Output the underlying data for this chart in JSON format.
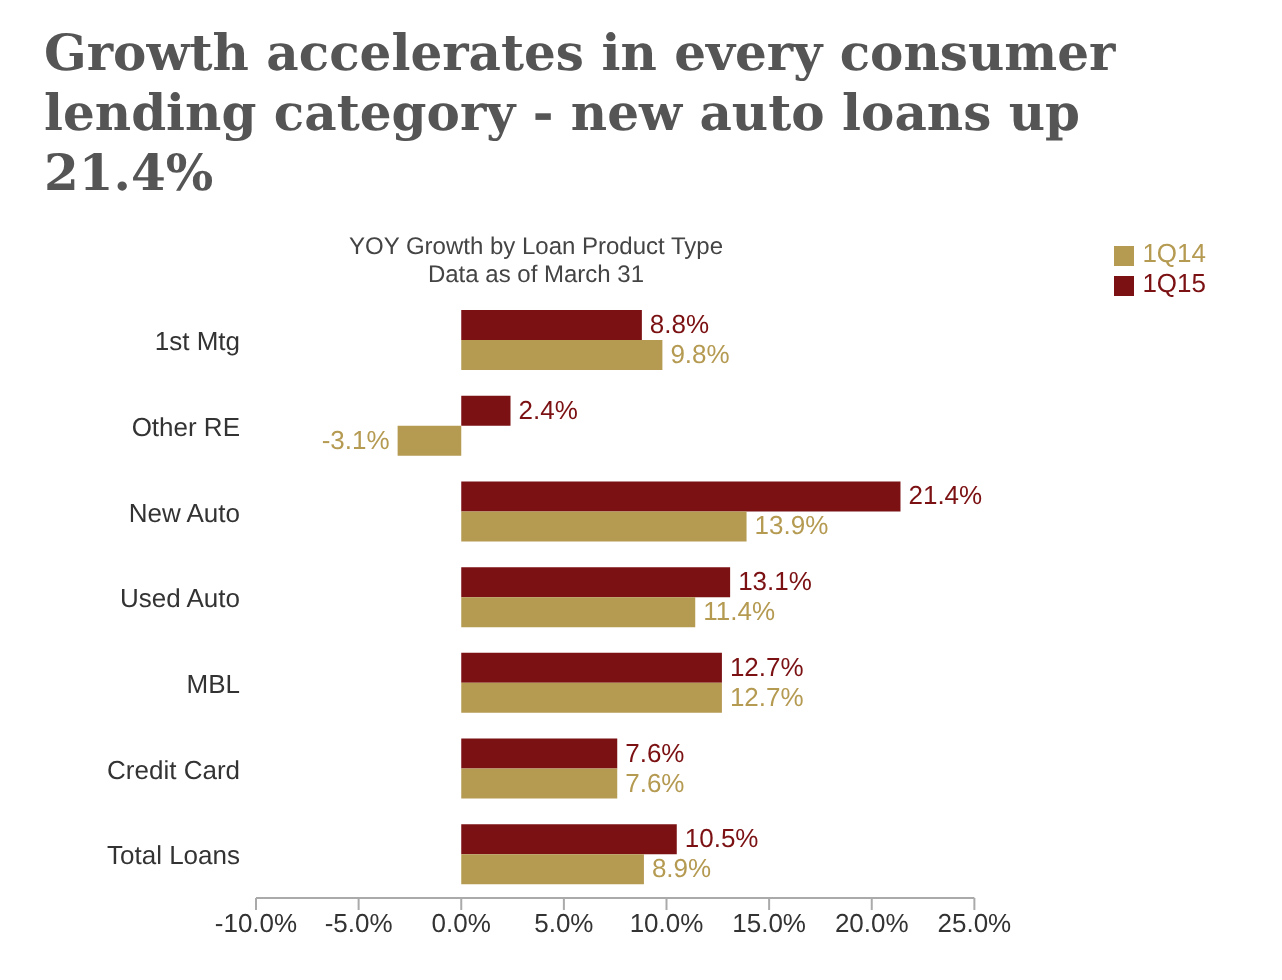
{
  "chart_data": {
    "type": "bar",
    "orientation": "horizontal",
    "title": "Growth accelerates in every consumer lending category - new auto loans up 21.4%",
    "subtitle": "YOY Growth by Loan Product Type",
    "annotations": [
      "Data as of March 31"
    ],
    "categories": [
      "1st Mtg",
      "Other RE",
      "New Auto",
      "Used Auto",
      "MBL",
      "Credit Card",
      "Total Loans"
    ],
    "series": [
      {
        "name": "1Q15",
        "color": "#7b1113",
        "values": [
          8.8,
          2.4,
          21.4,
          13.1,
          12.7,
          7.6,
          10.5
        ],
        "value_labels": [
          "8.8%",
          "2.4%",
          "21.4%",
          "13.1%",
          "12.7%",
          "7.6%",
          "10.5%"
        ]
      },
      {
        "name": "1Q14",
        "color": "#b59a52",
        "values": [
          9.8,
          -3.1,
          13.9,
          11.4,
          12.7,
          7.6,
          8.9
        ],
        "value_labels": [
          "9.8%",
          "-3.1%",
          "13.9%",
          "11.4%",
          "12.7%",
          "7.6%",
          "8.9%"
        ]
      }
    ],
    "xlim": [
      -10,
      25
    ],
    "xticks": [
      {
        "value": -10,
        "label": "-10.0%"
      },
      {
        "value": -5,
        "label": "-5.0%"
      },
      {
        "value": 0,
        "label": "0.0%"
      },
      {
        "value": 5,
        "label": "5.0%"
      },
      {
        "value": 10,
        "label": "10.0%"
      },
      {
        "value": 15,
        "label": "15.0%"
      },
      {
        "value": 20,
        "label": "20.0%"
      },
      {
        "value": 25,
        "label": "25.0%"
      }
    ],
    "grid": false,
    "legend": "top right"
  }
}
